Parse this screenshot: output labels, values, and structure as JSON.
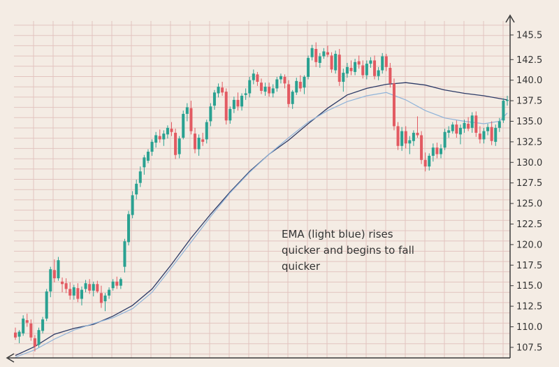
{
  "chart_data": {
    "type": "candlestick",
    "title": "",
    "xlabel": "",
    "ylabel": "",
    "ylim": [
      105.5,
      147
    ],
    "y_ticks": [
      "145.5",
      "142.5",
      "140.0",
      "137.5",
      "135.0",
      "132.5",
      "130.0",
      "127.5",
      "125.0",
      "122.5",
      "120.0",
      "117.5",
      "115.0",
      "112.5",
      "110.0",
      "107.5"
    ],
    "grid": true,
    "annotation": [
      "EMA (light blue) rises",
      "quicker and begins to fall",
      "quicker"
    ],
    "colors": {
      "up": "#2aa191",
      "down": "#e25a62",
      "sma": "#2c3a66",
      "ema": "#8fb3d9",
      "grid": "#e2c4bf",
      "axis": "#3a3a3a",
      "background": "#f4ece4"
    },
    "candles": [
      [
        109.3,
        109.9,
        108.4,
        108.7
      ],
      [
        108.8,
        109.6,
        108.0,
        109.4
      ],
      [
        109.2,
        111.4,
        108.9,
        111.0
      ],
      [
        110.8,
        111.6,
        110.0,
        110.5
      ],
      [
        110.4,
        110.9,
        108.3,
        108.7
      ],
      [
        108.6,
        109.0,
        107.0,
        107.6
      ],
      [
        107.8,
        109.9,
        107.5,
        109.6
      ],
      [
        109.5,
        111.2,
        109.2,
        110.9
      ],
      [
        111.0,
        114.6,
        110.7,
        114.3
      ],
      [
        114.3,
        117.3,
        113.6,
        117.0
      ],
      [
        116.9,
        118.2,
        115.4,
        115.9
      ],
      [
        115.9,
        118.5,
        115.6,
        118.1
      ],
      [
        115.5,
        116.0,
        114.2,
        115.2
      ],
      [
        115.3,
        115.9,
        114.1,
        114.6
      ],
      [
        114.6,
        115.4,
        113.3,
        113.8
      ],
      [
        113.8,
        115.1,
        113.3,
        114.8
      ],
      [
        114.7,
        115.3,
        113.0,
        113.4
      ],
      [
        113.4,
        114.9,
        112.6,
        114.5
      ],
      [
        114.6,
        115.7,
        114.2,
        115.3
      ],
      [
        115.2,
        115.8,
        114.0,
        114.4
      ],
      [
        114.4,
        115.5,
        113.7,
        115.2
      ],
      [
        115.2,
        115.6,
        114.1,
        114.3
      ],
      [
        114.1,
        115.0,
        112.3,
        112.9
      ],
      [
        113.1,
        114.1,
        111.9,
        113.8
      ],
      [
        113.8,
        114.8,
        113.4,
        114.5
      ],
      [
        114.7,
        115.8,
        114.4,
        115.5
      ],
      [
        115.5,
        116.1,
        114.6,
        115.0
      ],
      [
        115.0,
        116.0,
        114.6,
        115.8
      ],
      [
        117.3,
        120.7,
        116.6,
        120.4
      ],
      [
        120.3,
        124.1,
        119.9,
        123.7
      ],
      [
        123.6,
        126.5,
        123.2,
        126.0
      ],
      [
        126.1,
        127.9,
        125.5,
        127.4
      ],
      [
        127.5,
        129.5,
        127.0,
        128.9
      ],
      [
        129.4,
        130.9,
        128.5,
        130.6
      ],
      [
        130.2,
        131.6,
        129.9,
        131.3
      ],
      [
        131.3,
        132.8,
        130.8,
        132.5
      ],
      [
        132.4,
        133.7,
        131.8,
        133.3
      ],
      [
        133.2,
        134.0,
        132.4,
        132.8
      ],
      [
        132.8,
        133.9,
        132.0,
        133.5
      ],
      [
        133.4,
        134.5,
        132.9,
        134.2
      ],
      [
        134.1,
        134.9,
        133.2,
        133.7
      ],
      [
        133.6,
        134.1,
        130.4,
        130.9
      ],
      [
        131.0,
        133.2,
        130.5,
        132.9
      ],
      [
        133.0,
        136.3,
        132.8,
        135.9
      ],
      [
        135.9,
        137.2,
        135.0,
        136.7
      ],
      [
        136.6,
        137.5,
        133.4,
        133.8
      ],
      [
        133.5,
        134.2,
        131.1,
        131.6
      ],
      [
        131.6,
        133.4,
        130.8,
        133.0
      ],
      [
        132.8,
        133.6,
        132.0,
        132.5
      ],
      [
        132.8,
        135.2,
        132.3,
        134.9
      ],
      [
        135.0,
        137.2,
        134.4,
        136.8
      ],
      [
        136.9,
        138.8,
        136.4,
        138.5
      ],
      [
        138.4,
        139.6,
        137.9,
        139.2
      ],
      [
        139.1,
        139.8,
        138.1,
        138.5
      ],
      [
        138.6,
        139.0,
        134.6,
        135.1
      ],
      [
        135.1,
        136.8,
        134.7,
        136.5
      ],
      [
        136.5,
        138.0,
        136.0,
        137.6
      ],
      [
        137.6,
        138.5,
        136.3,
        136.8
      ],
      [
        136.8,
        138.4,
        136.3,
        138.1
      ],
      [
        138.2,
        139.0,
        137.6,
        138.4
      ],
      [
        138.4,
        140.4,
        137.9,
        140.0
      ],
      [
        140.0,
        141.3,
        139.5,
        140.8
      ],
      [
        140.7,
        141.0,
        139.3,
        139.8
      ],
      [
        139.7,
        140.2,
        138.3,
        138.7
      ],
      [
        138.6,
        139.7,
        138.1,
        139.2
      ],
      [
        139.2,
        139.7,
        138.0,
        138.4
      ],
      [
        138.4,
        139.5,
        137.9,
        139.0
      ],
      [
        139.0,
        140.4,
        138.6,
        140.1
      ],
      [
        140.1,
        140.8,
        139.6,
        140.5
      ],
      [
        140.4,
        140.7,
        139.0,
        139.6
      ],
      [
        139.5,
        140.0,
        136.7,
        137.1
      ],
      [
        137.1,
        138.8,
        136.5,
        138.6
      ],
      [
        138.5,
        140.3,
        138.2,
        139.9
      ],
      [
        139.8,
        140.6,
        138.6,
        139.0
      ],
      [
        139.1,
        140.6,
        138.3,
        140.4
      ],
      [
        140.4,
        143.0,
        140.1,
        142.7
      ],
      [
        142.8,
        144.3,
        142.4,
        143.9
      ],
      [
        143.8,
        144.6,
        141.6,
        142.2
      ],
      [
        142.1,
        143.3,
        141.5,
        142.9
      ],
      [
        142.9,
        143.9,
        142.6,
        143.5
      ],
      [
        143.4,
        144.2,
        142.8,
        143.1
      ],
      [
        143.0,
        143.4,
        140.9,
        141.3
      ],
      [
        141.2,
        143.6,
        140.8,
        143.2
      ],
      [
        143.1,
        143.8,
        139.3,
        139.8
      ],
      [
        139.8,
        141.4,
        138.6,
        140.9
      ],
      [
        140.8,
        142.1,
        140.3,
        141.6
      ],
      [
        141.5,
        142.4,
        140.6,
        141.1
      ],
      [
        141.0,
        142.6,
        140.6,
        142.2
      ],
      [
        142.3,
        143.0,
        141.4,
        141.9
      ],
      [
        141.8,
        142.4,
        140.2,
        140.6
      ],
      [
        140.6,
        142.4,
        140.1,
        142.0
      ],
      [
        142.0,
        142.8,
        141.5,
        142.4
      ],
      [
        142.4,
        143.0,
        140.1,
        140.5
      ],
      [
        140.5,
        141.6,
        140.0,
        141.2
      ],
      [
        141.2,
        143.3,
        140.8,
        142.9
      ],
      [
        142.9,
        143.2,
        141.1,
        141.6
      ],
      [
        141.5,
        142.1,
        139.1,
        139.6
      ],
      [
        139.6,
        140.2,
        133.9,
        134.4
      ],
      [
        134.4,
        134.9,
        131.5,
        132.0
      ],
      [
        132.0,
        134.3,
        131.4,
        133.8
      ],
      [
        133.8,
        134.4,
        131.7,
        132.3
      ],
      [
        132.3,
        133.2,
        131.0,
        132.7
      ],
      [
        132.6,
        133.9,
        132.0,
        133.6
      ],
      [
        133.6,
        135.6,
        133.0,
        133.3
      ],
      [
        133.3,
        133.8,
        129.8,
        130.3
      ],
      [
        130.3,
        131.2,
        128.9,
        129.5
      ],
      [
        129.5,
        131.1,
        129.0,
        130.8
      ],
      [
        130.8,
        132.3,
        130.1,
        131.8
      ],
      [
        131.8,
        132.4,
        130.5,
        131.0
      ],
      [
        131.0,
        132.2,
        130.5,
        131.7
      ],
      [
        131.8,
        134.1,
        131.5,
        133.7
      ],
      [
        133.6,
        134.4,
        133.0,
        133.9
      ],
      [
        133.8,
        134.9,
        133.5,
        134.6
      ],
      [
        134.6,
        135.1,
        133.0,
        133.5
      ],
      [
        133.4,
        134.6,
        132.2,
        134.2
      ],
      [
        134.1,
        135.2,
        133.6,
        134.8
      ],
      [
        134.7,
        135.5,
        133.8,
        134.1
      ],
      [
        134.2,
        136.1,
        133.6,
        135.7
      ],
      [
        135.7,
        136.2,
        133.1,
        133.6
      ],
      [
        133.5,
        134.4,
        132.3,
        132.8
      ],
      [
        132.8,
        134.2,
        132.3,
        133.8
      ],
      [
        133.8,
        134.7,
        133.3,
        134.3
      ],
      [
        134.3,
        135.0,
        132.1,
        132.6
      ],
      [
        132.5,
        134.6,
        132.0,
        134.2
      ],
      [
        134.2,
        135.4,
        133.7,
        135.0
      ],
      [
        135.1,
        137.8,
        134.8,
        137.5
      ],
      [
        137.5,
        138.1,
        136.9,
        137.6
      ]
    ],
    "sma": [
      [
        0,
        106.5
      ],
      [
        5,
        107.6
      ],
      [
        10,
        109.1
      ],
      [
        15,
        109.8
      ],
      [
        20,
        110.3
      ],
      [
        25,
        111.3
      ],
      [
        30,
        112.6
      ],
      [
        35,
        114.6
      ],
      [
        40,
        117.6
      ],
      [
        45,
        120.8
      ],
      [
        50,
        123.7
      ],
      [
        55,
        126.4
      ],
      [
        60,
        128.9
      ],
      [
        65,
        131.0
      ],
      [
        70,
        132.7
      ],
      [
        75,
        134.7
      ],
      [
        80,
        136.6
      ],
      [
        85,
        138.2
      ],
      [
        90,
        139.0
      ],
      [
        95,
        139.5
      ],
      [
        100,
        139.7
      ],
      [
        105,
        139.4
      ],
      [
        110,
        138.8
      ],
      [
        115,
        138.4
      ],
      [
        120,
        138.1
      ],
      [
        126,
        137.6
      ]
    ],
    "ema": [
      [
        0,
        106.3
      ],
      [
        5,
        107.2
      ],
      [
        10,
        108.5
      ],
      [
        15,
        109.6
      ],
      [
        20,
        110.4
      ],
      [
        25,
        111.1
      ],
      [
        30,
        112.2
      ],
      [
        35,
        114.2
      ],
      [
        40,
        117.2
      ],
      [
        45,
        120.3
      ],
      [
        50,
        123.4
      ],
      [
        55,
        126.3
      ],
      [
        60,
        128.8
      ],
      [
        65,
        131.0
      ],
      [
        70,
        133.0
      ],
      [
        75,
        134.9
      ],
      [
        80,
        136.3
      ],
      [
        85,
        137.4
      ],
      [
        90,
        138.1
      ],
      [
        95,
        138.5
      ],
      [
        100,
        137.6
      ],
      [
        105,
        136.3
      ],
      [
        110,
        135.4
      ],
      [
        115,
        135.0
      ],
      [
        120,
        134.7
      ],
      [
        124,
        135.0
      ],
      [
        126,
        136.0
      ]
    ]
  }
}
